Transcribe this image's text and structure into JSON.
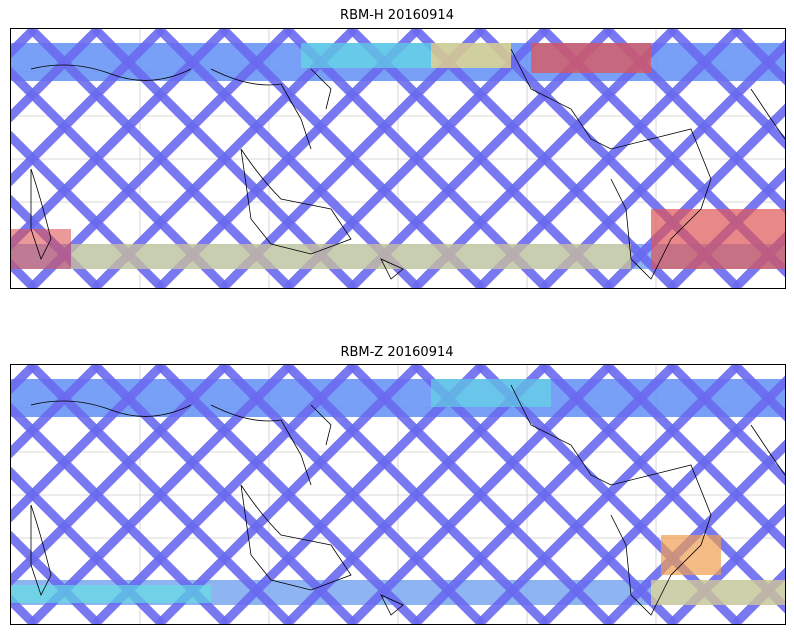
{
  "panels": [
    {
      "title": "RBM-H 20160914",
      "colors": {
        "background_track": "#6a6af0",
        "high": "#e05555",
        "mid": "#f6e37a",
        "low_mid": "#5ee6e0"
      }
    },
    {
      "title": "RBM-Z 20160914",
      "colors": {
        "background_track": "#6a6af0",
        "high": "#f0a050",
        "mid": "#f6e37a",
        "low_mid": "#5ee6e0"
      }
    }
  ]
}
